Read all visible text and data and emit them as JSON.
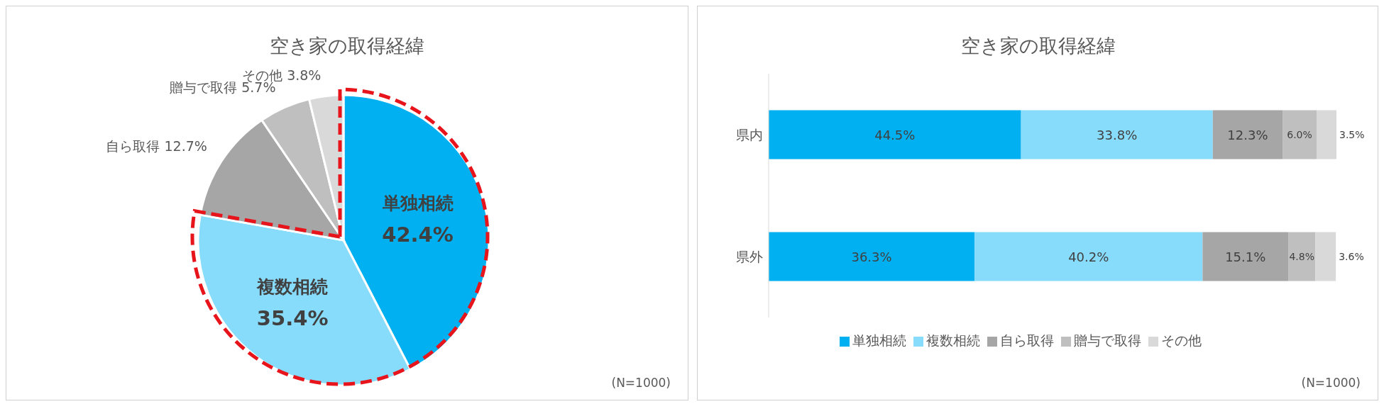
{
  "chart_data": [
    {
      "type": "pie",
      "title": "空き家の取得経緯",
      "categories": [
        "単独相続",
        "複数相続",
        "自ら取得",
        "贈与で取得",
        "その他"
      ],
      "values": [
        42.4,
        35.4,
        12.7,
        5.7,
        3.8
      ],
      "colors": [
        "#00b0f0",
        "#87dcfc",
        "#a6a6a6",
        "#bfbfbf",
        "#d9d9d9"
      ],
      "value_labels": [
        "42.4%",
        "35.4%",
        "12.7%",
        "5.7%",
        "3.8%"
      ],
      "annotations": [
        "(N=1000)"
      ]
    },
    {
      "type": "bar",
      "orientation": "horizontal",
      "stacked": true,
      "title": "空き家の取得経緯",
      "categories": [
        "県内",
        "県外"
      ],
      "xlim": [
        0,
        100.1
      ],
      "tick_labels": "y",
      "legend": "bottom",
      "series": [
        {
          "name": "単独相続",
          "color": "#00b0f0",
          "values": [
            44.5,
            36.3
          ],
          "value_labels": [
            "44.5%",
            "36.3%"
          ]
        },
        {
          "name": "複数相続",
          "color": "#87dcfc",
          "values": [
            33.8,
            40.2
          ],
          "value_labels": [
            "33.8%",
            "40.2%"
          ]
        },
        {
          "name": "自ら取得",
          "color": "#a6a6a6",
          "values": [
            12.3,
            15.1
          ],
          "value_labels": [
            "12.3%",
            "15.1%"
          ]
        },
        {
          "name": "贈与で取得",
          "color": "#bfbfbf",
          "values": [
            6.0,
            4.8
          ],
          "value_labels": [
            "6.0%",
            "4.8%"
          ]
        },
        {
          "name": "その他",
          "color": "#d9d9d9",
          "values": [
            3.5,
            3.6
          ],
          "value_labels": [
            "3.5%",
            "3.6%"
          ]
        }
      ],
      "annotations": [
        "(N=1000)"
      ]
    }
  ]
}
